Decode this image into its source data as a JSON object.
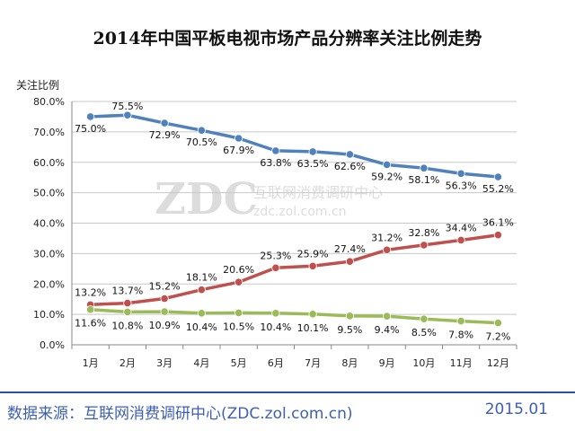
{
  "chart_data": {
    "type": "line",
    "title": "2014年中国平板电视市场产品分辨率关注比例走势",
    "ylabel": "关注比例",
    "xlabel": "",
    "ylim": [
      0,
      80
    ],
    "ytick_step": 10,
    "yticks": [
      "0.0%",
      "10.0%",
      "20.0%",
      "30.0%",
      "40.0%",
      "50.0%",
      "60.0%",
      "70.0%",
      "80.0%"
    ],
    "categories": [
      "1月",
      "2月",
      "3月",
      "4月",
      "5月",
      "6月",
      "7月",
      "8月",
      "9月",
      "10月",
      "11月",
      "12月"
    ],
    "series": [
      {
        "name": "series-blue",
        "color": "#4f81bd",
        "values": [
          75.0,
          75.5,
          72.9,
          70.5,
          67.9,
          63.8,
          63.5,
          62.6,
          59.2,
          58.1,
          56.3,
          55.2
        ],
        "labels": [
          "75.0%",
          "75.5%",
          "72.9%",
          "70.5%",
          "67.9%",
          "63.8%",
          "63.5%",
          "62.6%",
          "59.2%",
          "58.1%",
          "56.3%",
          "55.2%"
        ]
      },
      {
        "name": "series-red",
        "color": "#c0504d",
        "values": [
          13.2,
          13.7,
          15.2,
          18.1,
          20.6,
          25.3,
          25.9,
          27.4,
          31.2,
          32.8,
          34.4,
          36.1
        ],
        "labels": [
          "13.2%",
          "13.7%",
          "15.2%",
          "18.1%",
          "20.6%",
          "25.3%",
          "25.9%",
          "27.4%",
          "31.2%",
          "32.8%",
          "34.4%",
          "36.1%"
        ]
      },
      {
        "name": "series-green",
        "color": "#9bbb59",
        "values": [
          11.6,
          10.8,
          10.9,
          10.4,
          10.5,
          10.4,
          10.1,
          9.5,
          9.4,
          8.5,
          7.8,
          7.2
        ],
        "labels": [
          "11.6%",
          "10.8%",
          "10.9%",
          "10.4%",
          "10.5%",
          "10.4%",
          "10.1%",
          "9.5%",
          "9.4%",
          "8.5%",
          "7.8%",
          "7.2%"
        ]
      }
    ],
    "watermark": "ZDC 互联网消费调研中心 zdc.zol.com.cn"
  },
  "footer": {
    "source": "数据来源：互联网消费调研中心(ZDC.zol.com.cn)",
    "date": "2015.01"
  }
}
